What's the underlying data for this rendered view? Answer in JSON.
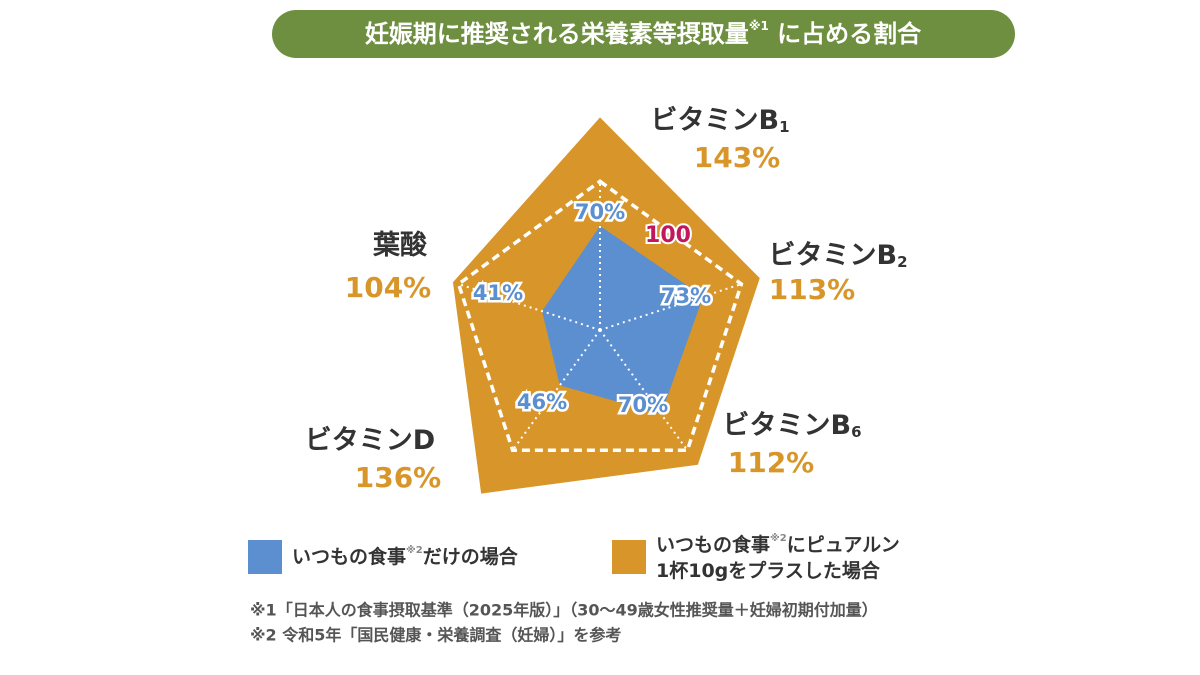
{
  "chart_data": {
    "type": "radar",
    "title": [
      "妊娠期に推奨される栄養素等摂取量",
      "※1",
      " に占める割合"
    ],
    "categories": [
      [
        "ビタミンB",
        "1"
      ],
      [
        "ビタミンB",
        "2"
      ],
      [
        "ビタミンB",
        "6"
      ],
      [
        "ビタミンD"
      ],
      [
        "葉酸"
      ]
    ],
    "rlim": [
      0,
      150
    ],
    "reference": 100,
    "series": [
      {
        "name": [
          "いつもの食事",
          "※2",
          "にピュアルン",
          "1杯10gをプラスした場合"
        ],
        "color": "#d8962a",
        "values": [
          143,
          113,
          112,
          136,
          104
        ],
        "value_labels": [
          "143%",
          "113%",
          "112%",
          "136%",
          "104%"
        ]
      },
      {
        "name": [
          "いつもの食事",
          "※2",
          "だけの場合"
        ],
        "color": "#5b8fd0",
        "values": [
          70,
          73,
          70,
          46,
          41
        ],
        "value_labels": [
          "70%",
          "73%",
          "70%",
          "46%",
          "41%"
        ]
      }
    ],
    "footnotes": [
      "※1「日本人の食事摂取基準（2025年版）」（30〜49歳女性推奨量＋妊婦初期付加量）",
      "※2 令和5年「国民健康・栄養調査（妊婦）」を参考"
    ]
  }
}
